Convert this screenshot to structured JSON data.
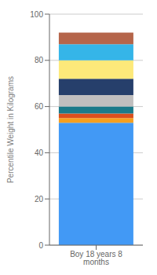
{
  "chart_data": {
    "type": "bar",
    "categories": [
      "Boy 18 years 8 months"
    ],
    "series": [
      {
        "color": "#4299f5",
        "values": [
          53
        ]
      },
      {
        "color": "#f5a020",
        "values": [
          2
        ]
      },
      {
        "color": "#d94f1e",
        "values": [
          2
        ]
      },
      {
        "color": "#1a7a8a",
        "values": [
          3
        ]
      },
      {
        "color": "#c0bfbf",
        "values": [
          5
        ]
      },
      {
        "color": "#263f6b",
        "values": [
          7
        ]
      },
      {
        "color": "#fde97a",
        "values": [
          8
        ]
      },
      {
        "color": "#35b5e8",
        "values": [
          7
        ]
      },
      {
        "color": "#b5654a",
        "values": [
          5
        ]
      }
    ],
    "ylabel": "Percentile Weight in Kilograms",
    "ylim": [
      0,
      100
    ],
    "yticks": [
      0,
      20,
      40,
      60,
      80,
      100
    ],
    "stacked": true,
    "grid": true
  }
}
